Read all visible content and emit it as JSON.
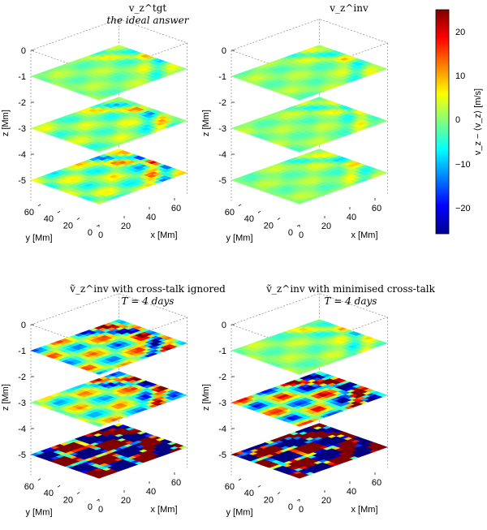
{
  "chart_data": [
    {
      "type": "heatmap",
      "title": "v_z^tgt",
      "subtitle": "the ideal answer",
      "xlabel": "x [Mm]",
      "ylabel": "y [Mm]",
      "zlabel": "z [Mm]",
      "x_ticks": [
        "0",
        "20",
        "40",
        "60"
      ],
      "y_ticks": [
        "0",
        "20",
        "40",
        "60"
      ],
      "z_ticks": [
        "0",
        "-1",
        "-2",
        "-3",
        "-4",
        "-5"
      ],
      "layer_depths": [
        -1,
        -3,
        -5
      ],
      "layer_amplitude_ms": [
        7,
        11,
        15
      ],
      "ylim": [
        0,
        70
      ]
    },
    {
      "type": "heatmap",
      "title": "v_z^inv",
      "subtitle": "",
      "xlabel": "x [Mm]",
      "ylabel": "y [Mm]",
      "zlabel": "z [Mm]",
      "x_ticks": [
        "0",
        "20",
        "40",
        "60"
      ],
      "y_ticks": [
        "0",
        "20",
        "40",
        "60"
      ],
      "z_ticks": [
        "0",
        "-1",
        "-2",
        "-3",
        "-4",
        "-5"
      ],
      "layer_depths": [
        -1,
        -3,
        -5
      ],
      "layer_amplitude_ms": [
        7,
        7,
        7
      ]
    },
    {
      "type": "heatmap",
      "title": "ṽ_z^inv with cross-talk ignored",
      "subtitle": "T = 4 days",
      "xlabel": "x [Mm]",
      "ylabel": "y [Mm]",
      "zlabel": "z [Mm]",
      "x_ticks": [
        "0",
        "20",
        "40",
        "60"
      ],
      "y_ticks": [
        "0",
        "20",
        "40",
        "60"
      ],
      "z_ticks": [
        "0",
        "-1",
        "-2",
        "-3",
        "-4",
        "-5"
      ],
      "layer_depths": [
        -1,
        -3,
        -5
      ],
      "layer_amplitude_ms": [
        30,
        25,
        200
      ]
    },
    {
      "type": "heatmap",
      "title": "ṽ_z^inv with minimised cross-talk",
      "subtitle": "T = 4 days",
      "xlabel": "x [Mm]",
      "ylabel": "y [Mm]",
      "zlabel": "z [Mm]",
      "x_ticks": [
        "0",
        "20",
        "40",
        "60"
      ],
      "y_ticks": [
        "0",
        "20",
        "40",
        "60"
      ],
      "z_ticks": [
        "0",
        "-1",
        "-2",
        "-3",
        "-4",
        "-5"
      ],
      "layer_depths": [
        -1,
        -3,
        -5
      ],
      "layer_amplitude_ms": [
        8,
        40,
        200
      ]
    }
  ],
  "colorbar": {
    "label": "v_z − ⟨v_z⟩ [m/s]",
    "min": -26,
    "max": 25,
    "ticks": [
      "20",
      "10",
      "0",
      "−10",
      "−20"
    ],
    "colormap": "jet"
  }
}
